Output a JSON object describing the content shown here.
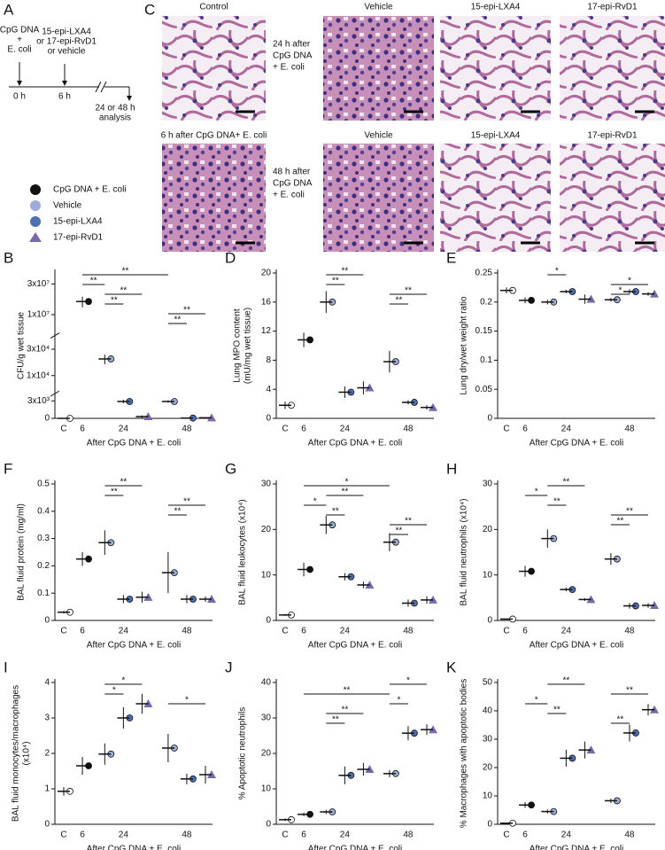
{
  "panel_a": {
    "label": "A",
    "start": [
      "CpG DNA",
      "+",
      "E. coli"
    ],
    "treatment": [
      "15-epi-LXA4",
      "or 17-epi-RvD1",
      "or vehicle"
    ],
    "t0": "0 h",
    "t6": "6 h",
    "end": [
      "24 or 48 h",
      "analysis"
    ]
  },
  "panel_c": {
    "label": "C",
    "row1": {
      "images": [
        "Control",
        "Vehicle",
        "15-epi-LXA4",
        "17-epi-RvD1"
      ],
      "side": [
        "24 h after",
        "CpG DNA",
        "+ E. coli"
      ]
    },
    "row2": {
      "images": [
        "6 h after CpG DNA+ E. coli",
        "Vehicle",
        "15-epi-LXA4",
        "17-epi-RvD1"
      ],
      "side": [
        "48 h after",
        "CpG DNA",
        "+ E. coli"
      ]
    }
  },
  "legend": [
    {
      "label": "CpG DNA + E. coli",
      "color": "#111111",
      "marker": "circle"
    },
    {
      "label": "Vehicle",
      "color": "#9dadd9",
      "marker": "circle"
    },
    {
      "label": "15-epi-LXA4",
      "color": "#4f6fb3",
      "marker": "circle"
    },
    {
      "label": "17-epi-RvD1",
      "color": "#7a68ad",
      "marker": "triangle"
    }
  ],
  "groups": {
    "colors": [
      "#ffffff",
      "#111111",
      "#9dadd9",
      "#4f6fb3",
      "#7a68ad",
      "#9dadd9",
      "#4f6fb3",
      "#7a68ad"
    ],
    "markers": [
      "circle",
      "circle",
      "circle",
      "circle",
      "triangle",
      "circle",
      "circle",
      "triangle"
    ]
  },
  "chart_data": [
    {
      "type": "dot",
      "panel": "B",
      "ylabel": [
        "CFU/g wet tissue"
      ],
      "xlabel": "After CpG DNA + E. coli",
      "categories": [
        "C",
        "6",
        null,
        "24",
        null,
        null,
        "48",
        null
      ],
      "values": [
        0,
        16000000,
        20000,
        2900,
        300,
        2900,
        50,
        100
      ],
      "errors": [
        0,
        3000000,
        4000,
        300,
        200,
        200,
        20,
        30
      ],
      "segments": [
        {
          "range": [
            0,
            4000
          ],
          "scale": "linear"
        },
        {
          "range": [
            5000,
            50000
          ],
          "scale": "log"
        },
        {
          "range": [
            5000000,
            40000000
          ],
          "scale": "log"
        }
      ],
      "yticks": [
        0,
        {
          "value": 3000,
          "label": "3x10³"
        },
        {
          "value": 10000,
          "label": "1x10⁴"
        },
        {
          "value": 30000,
          "label": "3x10⁴"
        },
        {
          "value": 10000000,
          "label": "1x10⁷"
        },
        {
          "value": 30000000,
          "label": "3x10⁷"
        }
      ],
      "brackets": [
        {
          "from": 1,
          "to": 5,
          "label": "**"
        },
        {
          "from": 1,
          "to": 2,
          "label": "**"
        },
        {
          "from": 2,
          "to": 4,
          "label": "**"
        },
        {
          "from": 2,
          "to": 3,
          "label": "**"
        },
        {
          "from": 5,
          "to": 7,
          "label": "**"
        },
        {
          "from": 5,
          "to": 6,
          "label": "**"
        }
      ]
    },
    {
      "type": "dot",
      "panel": "D",
      "ylabel": [
        "Lung MPO content",
        "(mU/mg wet tissue)"
      ],
      "xlabel": "After CpG DNA + E. coli",
      "categories": [
        "C",
        "6",
        null,
        "24",
        null,
        null,
        "48",
        null
      ],
      "values": [
        1.8,
        10.8,
        16,
        3.6,
        4.2,
        7.8,
        2.2,
        1.5
      ],
      "errors": [
        0.5,
        1,
        1.5,
        0.8,
        0.9,
        1.5,
        0.3,
        0.3
      ],
      "ylim": [
        0,
        20
      ],
      "yticks": [
        0,
        4,
        8,
        12,
        16,
        20
      ],
      "brackets": [
        {
          "from": 2,
          "to": 4,
          "label": "**"
        },
        {
          "from": 2,
          "to": 3,
          "label": "**"
        },
        {
          "from": 5,
          "to": 7,
          "label": "**"
        },
        {
          "from": 5,
          "to": 6,
          "label": "**"
        }
      ]
    },
    {
      "type": "dot",
      "panel": "E",
      "ylabel": [
        "Lung dry/wet weight ratio"
      ],
      "xlabel": "After CpG DNA + E. coli",
      "categories": [
        "C",
        "6",
        null,
        "24",
        null,
        null,
        "48",
        null
      ],
      "values": [
        0.22,
        0.203,
        0.2,
        0.218,
        0.205,
        0.204,
        0.218,
        0.214
      ],
      "errors": [
        0.005,
        0.005,
        0.004,
        0.003,
        0.008,
        0.003,
        0.004,
        0.003
      ],
      "ylim": [
        0,
        0.25
      ],
      "yticks": [
        0,
        0.05,
        0.1,
        0.15,
        0.2,
        0.25
      ],
      "brackets": [
        {
          "from": 2,
          "to": 3,
          "label": "*"
        },
        {
          "from": 5,
          "to": 7,
          "label": "*"
        },
        {
          "from": 5,
          "to": 6,
          "label": "*"
        }
      ]
    },
    {
      "type": "dot",
      "panel": "F",
      "ylabel": [
        "BAL fluid protein (mg/ml)"
      ],
      "xlabel": "After CpG DNA + E. coli",
      "categories": [
        "C",
        "6",
        null,
        "24",
        null,
        null,
        "48",
        null
      ],
      "values": [
        0.03,
        0.225,
        0.285,
        0.078,
        0.085,
        0.175,
        0.078,
        0.078
      ],
      "errors": [
        0.005,
        0.025,
        0.045,
        0.015,
        0.02,
        0.075,
        0.015,
        0.01
      ],
      "ylim": [
        0,
        0.5
      ],
      "yticks": [
        0,
        0.1,
        0.2,
        0.3,
        0.4,
        0.5
      ],
      "brackets": [
        {
          "from": 2,
          "to": 4,
          "label": "**"
        },
        {
          "from": 2,
          "to": 3,
          "label": "**"
        },
        {
          "from": 5,
          "to": 7,
          "label": "**"
        },
        {
          "from": 5,
          "to": 6,
          "label": "**"
        }
      ]
    },
    {
      "type": "dot",
      "panel": "G",
      "ylabel": [
        "BAL fluid leukocytes (x10⁴)"
      ],
      "xlabel": "After CpG DNA + E. coli",
      "categories": [
        "C",
        "6",
        null,
        "24",
        null,
        null,
        "48",
        null
      ],
      "values": [
        1.2,
        11.2,
        21,
        9.6,
        7.8,
        17.2,
        3.8,
        4.5
      ],
      "errors": [
        0.2,
        1.5,
        2,
        0.8,
        0.7,
        2,
        0.8,
        0.8
      ],
      "ylim": [
        0,
        30
      ],
      "yticks": [
        0,
        10,
        20,
        30
      ],
      "brackets": [
        {
          "from": 1,
          "to": 5,
          "label": "*"
        },
        {
          "from": 2,
          "to": 4,
          "label": "**"
        },
        {
          "from": 1,
          "to": 2,
          "label": "*"
        },
        {
          "from": 2,
          "to": 3,
          "label": "**"
        },
        {
          "from": 5,
          "to": 7,
          "label": "**"
        },
        {
          "from": 5,
          "to": 6,
          "label": "**"
        }
      ]
    },
    {
      "type": "dot",
      "panel": "H",
      "ylabel": [
        "BAL fluid neutrophils (x10⁴)"
      ],
      "xlabel": "After CpG DNA + E. coli",
      "categories": [
        "C",
        "6",
        null,
        "24",
        null,
        null,
        "48",
        null
      ],
      "values": [
        0.3,
        10.8,
        18,
        6.8,
        4.6,
        13.5,
        3.2,
        3.3
      ],
      "errors": [
        0.1,
        1.2,
        2,
        0.4,
        0.3,
        1.3,
        0.6,
        0.5
      ],
      "ylim": [
        0,
        30
      ],
      "yticks": [
        0,
        10,
        20,
        30
      ],
      "brackets": [
        {
          "from": 2,
          "to": 4,
          "label": "**"
        },
        {
          "from": 1,
          "to": 2,
          "label": "*"
        },
        {
          "from": 2,
          "to": 3,
          "label": "**"
        },
        {
          "from": 5,
          "to": 7,
          "label": "**"
        },
        {
          "from": 5,
          "to": 6,
          "label": "**"
        }
      ]
    },
    {
      "type": "dot",
      "panel": "I",
      "ylabel": [
        "BAL fluid monocytes/macrophages",
        "(x10⁴)"
      ],
      "xlabel": "After CpG DNA + E. coli",
      "categories": [
        "C",
        "6",
        null,
        "24",
        null,
        null,
        "48",
        null
      ],
      "values": [
        0.93,
        1.65,
        1.98,
        3.0,
        3.4,
        2.15,
        1.28,
        1.4
      ],
      "errors": [
        0.12,
        0.25,
        0.3,
        0.3,
        0.28,
        0.4,
        0.15,
        0.25
      ],
      "ylim": [
        0,
        4
      ],
      "yticks": [
        0,
        1,
        2,
        3,
        4
      ],
      "brackets": [
        {
          "from": 2,
          "to": 4,
          "label": "*"
        },
        {
          "from": 2,
          "to": 3,
          "label": "*"
        },
        {
          "from": 5,
          "to": 7,
          "label": "*"
        }
      ]
    },
    {
      "type": "dot",
      "panel": "J",
      "ylabel": [
        "% Apoptotic neutrophils"
      ],
      "xlabel": "After CpG DNA + E. coli",
      "categories": [
        "C",
        "6",
        null,
        "24",
        null,
        null,
        "48",
        null
      ],
      "values": [
        1.3,
        2.8,
        3.5,
        13.8,
        15.5,
        14.3,
        25.7,
        26.7
      ],
      "errors": [
        0.4,
        0.5,
        0.6,
        2.5,
        1.8,
        1,
        2,
        1.5
      ],
      "ylim": [
        0,
        40
      ],
      "yticks": [
        0,
        10,
        20,
        30,
        40
      ],
      "brackets": [
        {
          "from": 5,
          "to": 7,
          "label": "*"
        },
        {
          "from": 1,
          "to": 5,
          "label": "**"
        },
        {
          "from": 5,
          "to": 6,
          "label": "*"
        },
        {
          "from": 2,
          "to": 4,
          "label": "**"
        },
        {
          "from": 2,
          "to": 3,
          "label": "**"
        }
      ]
    },
    {
      "type": "dot",
      "panel": "K",
      "ylabel": [
        "% Macrophages with apoptotic bodies"
      ],
      "xlabel": "After CpG DNA + E. coli",
      "categories": [
        "C",
        "6",
        null,
        "24",
        null,
        null,
        "48",
        null
      ],
      "values": [
        0.4,
        6.8,
        4.5,
        23.3,
        26.2,
        8.3,
        32.2,
        40.4
      ],
      "errors": [
        0.2,
        1,
        0.7,
        3,
        3,
        0.8,
        3,
        2
      ],
      "ylim": [
        0,
        50
      ],
      "yticks": [
        0,
        10,
        20,
        30,
        40,
        50
      ],
      "brackets": [
        {
          "from": 2,
          "to": 4,
          "label": "**"
        },
        {
          "from": 5,
          "to": 7,
          "label": "**"
        },
        {
          "from": 1,
          "to": 2,
          "label": "*"
        },
        {
          "from": 2,
          "to": 3,
          "label": "**"
        },
        {
          "from": 5,
          "to": 6,
          "label": "**"
        }
      ]
    }
  ]
}
